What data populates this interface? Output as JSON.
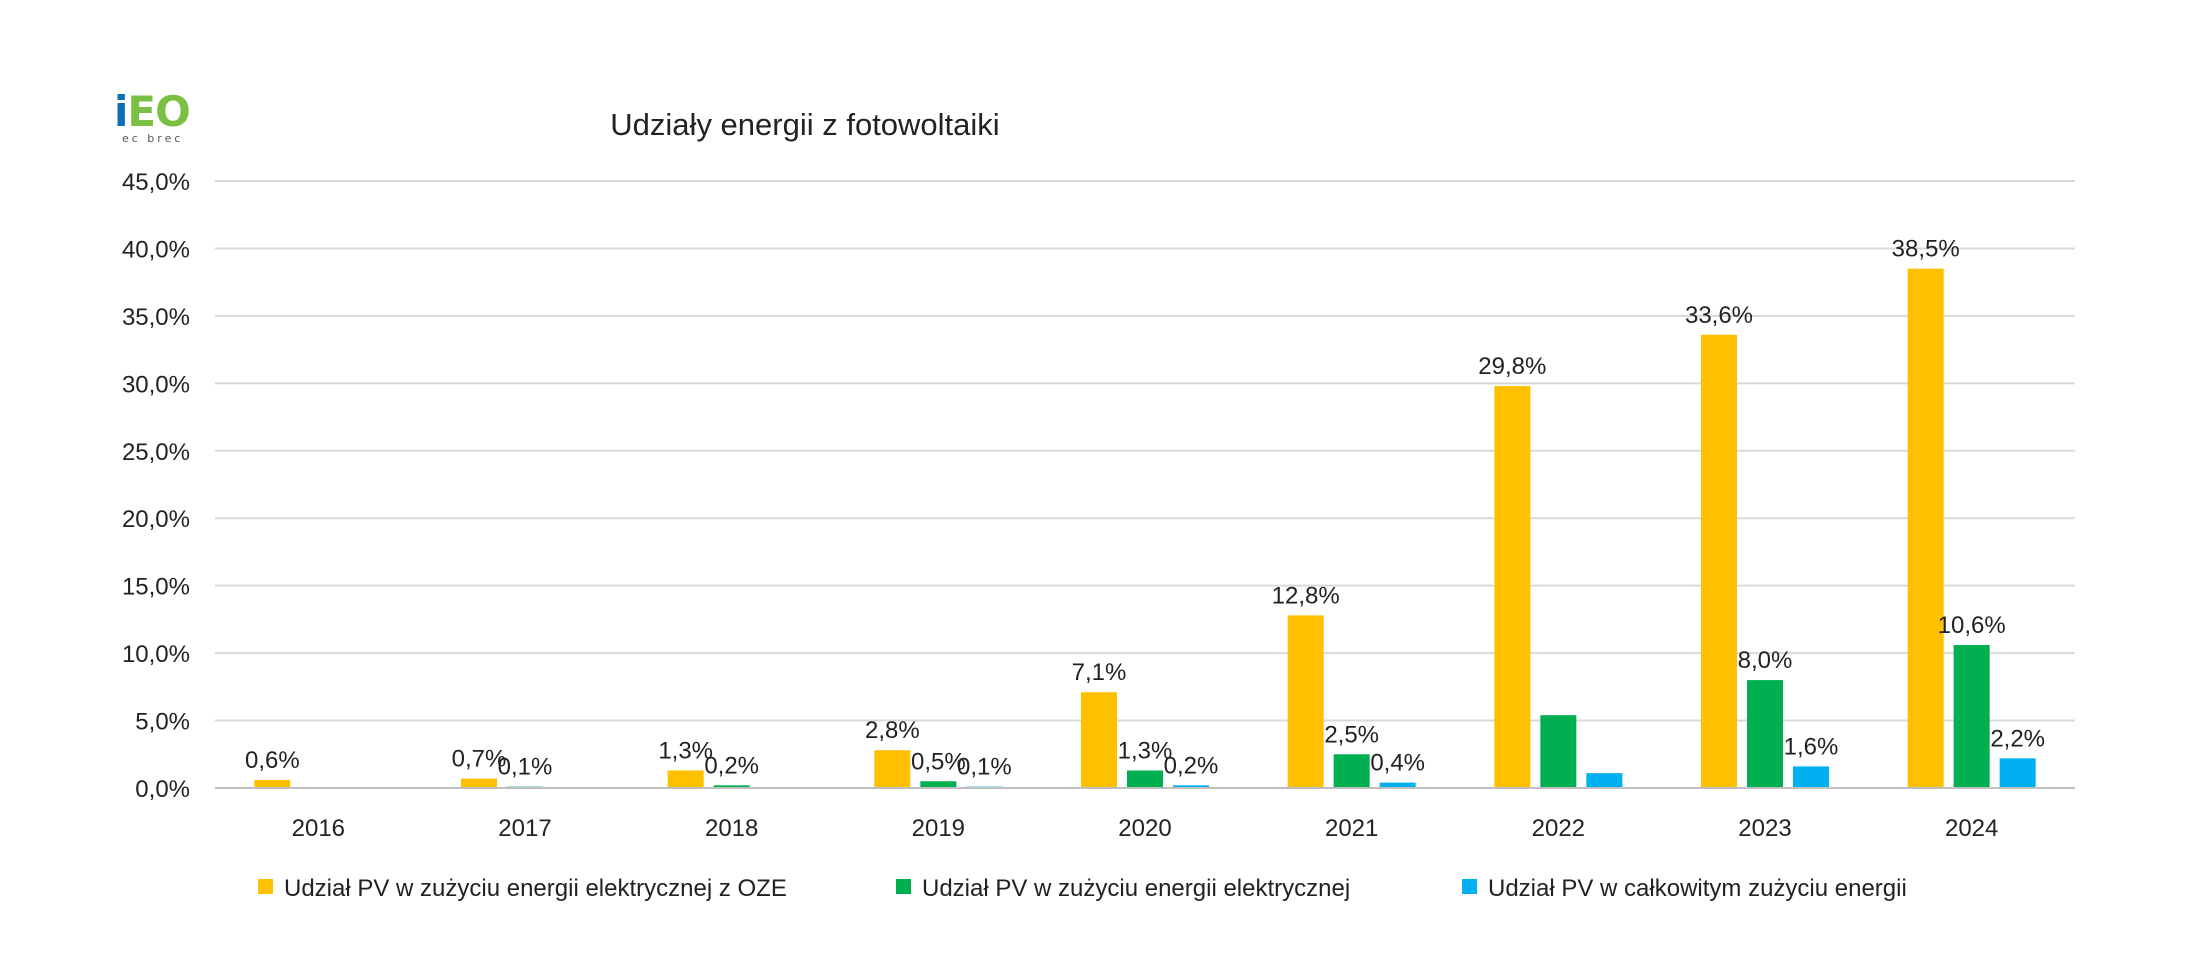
{
  "logo": {
    "main_i": "i",
    "main_rest": "EO",
    "sub": "ec brec"
  },
  "colors": {
    "series": [
      "#ffc000",
      "#00b050",
      "#00b0f0"
    ],
    "grid": "#d9d9d9",
    "text": "#222222"
  },
  "chart_data": {
    "type": "bar",
    "title": "Udziały energii z fotowoltaiki",
    "xlabel": "",
    "ylabel": "",
    "ylim": [
      0,
      45
    ],
    "yticks": [
      0,
      5,
      10,
      15,
      20,
      25,
      30,
      35,
      40,
      45
    ],
    "ytick_labels": [
      "0,0%",
      "5,0%",
      "10,0%",
      "15,0%",
      "20,0%",
      "25,0%",
      "30,0%",
      "35,0%",
      "40,0%",
      "45,0%"
    ],
    "grid": true,
    "legend_position": "bottom",
    "categories": [
      "2016",
      "2017",
      "2018",
      "2019",
      "2020",
      "2021",
      "2022",
      "2023",
      "2024"
    ],
    "series": [
      {
        "name": "Udział PV w zużyciu energii elektrycznej z OZE",
        "values": [
          0.6,
          0.7,
          1.3,
          2.8,
          7.1,
          12.8,
          29.8,
          33.6,
          38.5
        ],
        "labels": [
          "0,6%",
          "0,7%",
          "1,3%",
          "2,8%",
          "7,1%",
          "12,8%",
          "29,8%",
          "33,6%",
          "38,5%"
        ]
      },
      {
        "name": "Udział PV w zużyciu energii elektrycznej",
        "values": [
          0.0,
          0.1,
          0.2,
          0.5,
          1.3,
          2.5,
          5.4,
          8.0,
          10.6
        ],
        "labels": [
          "",
          "0,1%",
          "0,2%",
          "0,5%",
          "1,3%",
          "2,5%",
          "",
          "8,0%",
          "10,6%"
        ]
      },
      {
        "name": "Udział PV w całkowitym zużyciu energii",
        "values": [
          0.0,
          0.0,
          0.0,
          0.1,
          0.2,
          0.4,
          1.1,
          1.6,
          2.2
        ],
        "labels": [
          "",
          "",
          "",
          "0,1%",
          "0,2%",
          "0,4%",
          "",
          "1,6%",
          "2,2%"
        ]
      }
    ]
  }
}
